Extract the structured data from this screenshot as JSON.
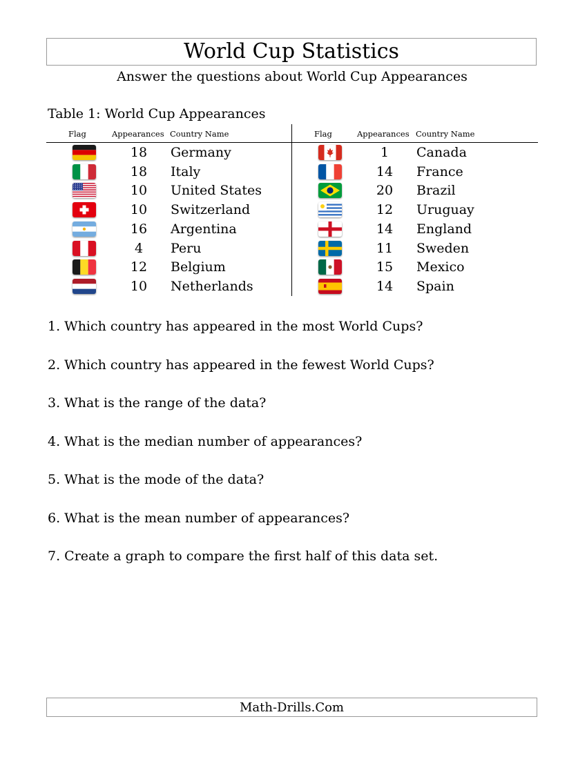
{
  "header": {
    "title": "World Cup Statistics",
    "subtitle": "Answer the questions about World Cup Appearances"
  },
  "table": {
    "caption": "Table 1: World Cup Appearances",
    "columns": [
      "Flag",
      "Appearances",
      "Country Name"
    ],
    "left": [
      {
        "flag": "germany-flag-icon",
        "appearances": "18",
        "country": "Germany"
      },
      {
        "flag": "italy-flag-icon",
        "appearances": "18",
        "country": "Italy"
      },
      {
        "flag": "united-states-flag-icon",
        "appearances": "10",
        "country": "United States"
      },
      {
        "flag": "switzerland-flag-icon",
        "appearances": "10",
        "country": "Switzerland"
      },
      {
        "flag": "argentina-flag-icon",
        "appearances": "16",
        "country": "Argentina"
      },
      {
        "flag": "peru-flag-icon",
        "appearances": "4",
        "country": "Peru"
      },
      {
        "flag": "belgium-flag-icon",
        "appearances": "12",
        "country": "Belgium"
      },
      {
        "flag": "netherlands-flag-icon",
        "appearances": "10",
        "country": "Netherlands"
      }
    ],
    "right": [
      {
        "flag": "canada-flag-icon",
        "appearances": "1",
        "country": "Canada"
      },
      {
        "flag": "france-flag-icon",
        "appearances": "14",
        "country": "France"
      },
      {
        "flag": "brazil-flag-icon",
        "appearances": "20",
        "country": "Brazil"
      },
      {
        "flag": "uruguay-flag-icon",
        "appearances": "12",
        "country": "Uruguay"
      },
      {
        "flag": "england-flag-icon",
        "appearances": "14",
        "country": "England"
      },
      {
        "flag": "sweden-flag-icon",
        "appearances": "11",
        "country": "Sweden"
      },
      {
        "flag": "mexico-flag-icon",
        "appearances": "15",
        "country": "Mexico"
      },
      {
        "flag": "spain-flag-icon",
        "appearances": "14",
        "country": "Spain"
      }
    ]
  },
  "questions": [
    "1. Which country has appeared in the most World Cups?",
    "2. Which country has appeared in the fewest World Cups?",
    "3. What is the range of the data?",
    "4. What is the median number of appearances?",
    "5. What is the mode of the data?",
    "6. What is the mean number of appearances?",
    "7. Create a graph to compare the first half of this data set."
  ],
  "footer": {
    "text": "Math-Drills.Com"
  }
}
